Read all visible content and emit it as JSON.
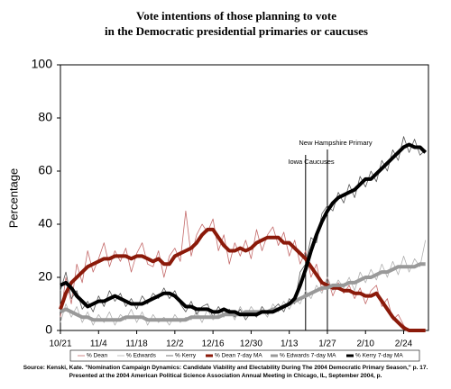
{
  "chart_data": {
    "type": "line",
    "title": [
      "Vote intentions of those planning to vote",
      "in the Democratic presidential primaries or caucuses"
    ],
    "y_label": "Percentage",
    "annotations": [
      "Iowa Caucuses",
      "New Hampshire Primary"
    ],
    "source": "Source: Kenski, Kate. \"Nomination Campaign Dynamics: Candidate Viability and Electability During The 2004 Democratic Primary Season,\" p. 17. Presented at the 2004 American Political Science Association Annual Meeting in Chicago, IL, September 2004, p.",
    "ylim": [
      0,
      100
    ],
    "yticks": [
      0,
      20,
      40,
      60,
      80,
      100
    ],
    "grid": false,
    "legend": "bottom",
    "categories": [
      "10/21",
      null,
      null,
      null,
      null,
      null,
      null,
      "11/4",
      null,
      null,
      null,
      null,
      null,
      null,
      "11/18",
      null,
      null,
      null,
      null,
      null,
      null,
      "12/2",
      null,
      null,
      null,
      null,
      null,
      null,
      "12/16",
      null,
      null,
      null,
      null,
      null,
      null,
      "12/30",
      null,
      null,
      null,
      null,
      null,
      null,
      "1/13",
      null,
      null,
      null,
      null,
      null,
      null,
      "1/27",
      null,
      null,
      null,
      null,
      null,
      null,
      "2/10",
      null,
      null,
      null,
      null,
      null,
      null,
      "2/24",
      null,
      null,
      null,
      null
    ],
    "series": [
      {
        "name": "% Dean",
        "color": "#c46a6a",
        "width": 0.8,
        "values": [
          5,
          20,
          10,
          25,
          18,
          30,
          22,
          27,
          33,
          24,
          30,
          26,
          31,
          22,
          29,
          33,
          25,
          24,
          30,
          20,
          28,
          31,
          26,
          45,
          28,
          36,
          40,
          37,
          42,
          30,
          36,
          25,
          33,
          28,
          34,
          27,
          38,
          30,
          36,
          39,
          32,
          37,
          28,
          34,
          25,
          30,
          20,
          25,
          15,
          20,
          13,
          18,
          14,
          17,
          12,
          16,
          10,
          15,
          17,
          9,
          12,
          4,
          6,
          2,
          0,
          0,
          0,
          0
        ]
      },
      {
        "name": "% Edwards",
        "color": "#b0b0b0",
        "width": 0.8,
        "values": [
          3,
          10,
          5,
          9,
          3,
          7,
          2,
          6,
          3,
          7,
          2,
          6,
          4,
          8,
          3,
          7,
          2,
          6,
          3,
          5,
          2,
          6,
          3,
          5,
          4,
          7,
          3,
          8,
          4,
          6,
          5,
          8,
          4,
          9,
          5,
          9,
          6,
          8,
          5,
          10,
          7,
          11,
          8,
          12,
          10,
          15,
          12,
          17,
          14,
          20,
          15,
          19,
          16,
          20,
          15,
          22,
          18,
          23,
          19,
          25,
          20,
          26,
          21,
          28,
          22,
          27,
          24,
          34
        ]
      },
      {
        "name": "% Kerry",
        "color": "#555555",
        "width": 0.8,
        "values": [
          15,
          22,
          12,
          15,
          8,
          11,
          7,
          13,
          9,
          15,
          11,
          14,
          9,
          12,
          8,
          13,
          10,
          14,
          12,
          16,
          12,
          15,
          10,
          7,
          11,
          6,
          9,
          10,
          5,
          9,
          6,
          8,
          5,
          8,
          4,
          7,
          5,
          9,
          6,
          8,
          10,
          7,
          12,
          10,
          22,
          25,
          35,
          33,
          44,
          47,
          45,
          52,
          48,
          55,
          50,
          58,
          54,
          60,
          56,
          64,
          60,
          68,
          64,
          73,
          67,
          72,
          66,
          68
        ]
      },
      {
        "name": "% Dean 7-day MA",
        "color": "#8b1a0a",
        "width": 4,
        "values": [
          8,
          14,
          18,
          20,
          22,
          24,
          25,
          26,
          27,
          27,
          28,
          28,
          28,
          27,
          28,
          28,
          27,
          26,
          27,
          25,
          25,
          28,
          29,
          30,
          31,
          33,
          36,
          38,
          38,
          35,
          32,
          30,
          30,
          31,
          30,
          31,
          33,
          34,
          35,
          35,
          35,
          33,
          33,
          31,
          29,
          27,
          24,
          21,
          18,
          17,
          16,
          16,
          15,
          15,
          14,
          14,
          13,
          13,
          14,
          11,
          8,
          5,
          3,
          1,
          0,
          0,
          0,
          0
        ]
      },
      {
        "name": "% Edwards 7-day MA",
        "color": "#999999",
        "width": 4,
        "values": [
          7,
          8,
          7,
          6,
          5,
          5,
          4,
          4,
          4,
          4,
          4,
          4,
          5,
          5,
          5,
          5,
          4,
          4,
          4,
          4,
          4,
          4,
          4,
          4,
          5,
          5,
          5,
          5,
          5,
          5,
          6,
          6,
          6,
          6,
          7,
          7,
          7,
          7,
          7,
          8,
          8,
          9,
          10,
          11,
          12,
          13,
          14,
          15,
          16,
          16,
          17,
          17,
          17,
          18,
          18,
          19,
          20,
          20,
          21,
          22,
          22,
          23,
          24,
          24,
          24,
          24,
          25,
          25
        ]
      },
      {
        "name": "% Kerry 7-day MA",
        "color": "#000000",
        "width": 4,
        "values": [
          17,
          18,
          16,
          13,
          11,
          9,
          10,
          11,
          11,
          12,
          13,
          12,
          11,
          10,
          10,
          10,
          11,
          12,
          13,
          14,
          14,
          13,
          11,
          9,
          9,
          8,
          8,
          8,
          7,
          7,
          8,
          7,
          7,
          6,
          6,
          6,
          6,
          7,
          7,
          7,
          8,
          9,
          10,
          12,
          17,
          23,
          30,
          36,
          41,
          45,
          48,
          50,
          51,
          52,
          53,
          55,
          57,
          57,
          59,
          61,
          63,
          65,
          67,
          69,
          70,
          69,
          69,
          67
        ]
      }
    ]
  }
}
